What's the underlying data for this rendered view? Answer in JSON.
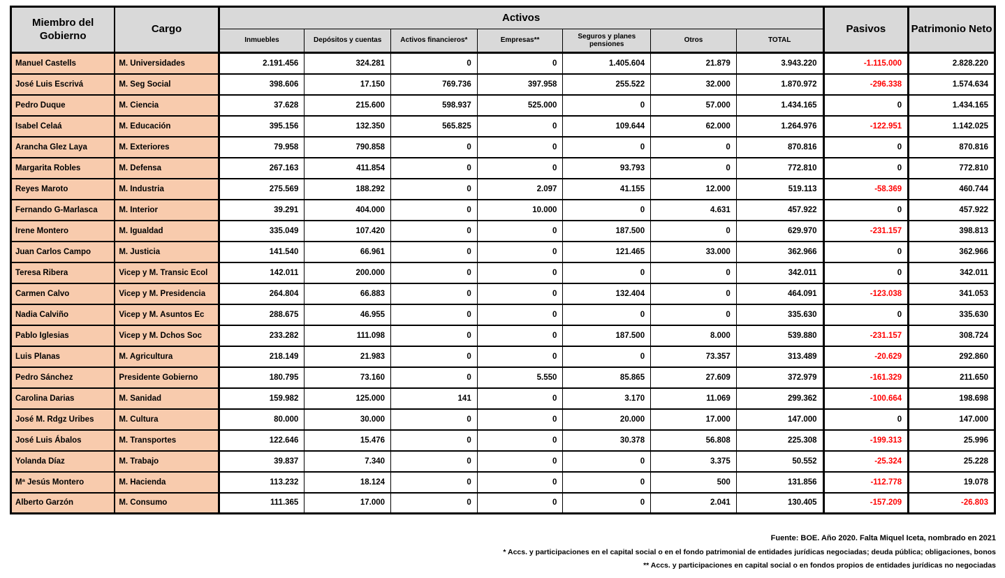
{
  "colors": {
    "header_bg": "#d9d9d9",
    "name_bg": "#f8cbad",
    "negative": "#ff0000"
  },
  "table": {
    "header": {
      "member": "Miembro del Gobierno",
      "cargo": "Cargo",
      "activos_group": "Activos",
      "activos_columns": [
        "Inmuebles",
        "Depósitos y cuentas",
        "Activos financieros*",
        "Empresas**",
        "Seguros y planes pensiones",
        "Otros",
        "TOTAL"
      ],
      "pasivos": "Pasivos",
      "patrimonio": "Patrimonio Neto"
    },
    "rows": [
      {
        "member": "Manuel Castells",
        "cargo": "M. Universidades",
        "activos": [
          "2.191.456",
          "324.281",
          "0",
          "0",
          "1.405.604",
          "21.879",
          "3.943.220"
        ],
        "pasivos": "-1.115.000",
        "patrimonio": "2.828.220"
      },
      {
        "member": "José Luis Escrivá",
        "cargo": "M. Seg Social",
        "activos": [
          "398.606",
          "17.150",
          "769.736",
          "397.958",
          "255.522",
          "32.000",
          "1.870.972"
        ],
        "pasivos": "-296.338",
        "patrimonio": "1.574.634"
      },
      {
        "member": "Pedro Duque",
        "cargo": "M. Ciencia",
        "activos": [
          "37.628",
          "215.600",
          "598.937",
          "525.000",
          "0",
          "57.000",
          "1.434.165"
        ],
        "pasivos": "0",
        "patrimonio": "1.434.165"
      },
      {
        "member": "Isabel Celaá",
        "cargo": "M. Educación",
        "activos": [
          "395.156",
          "132.350",
          "565.825",
          "0",
          "109.644",
          "62.000",
          "1.264.976"
        ],
        "pasivos": "-122.951",
        "patrimonio": "1.142.025"
      },
      {
        "member": "Arancha Glez Laya",
        "cargo": "M. Exteriores",
        "activos": [
          "79.958",
          "790.858",
          "0",
          "0",
          "0",
          "0",
          "870.816"
        ],
        "pasivos": "0",
        "patrimonio": "870.816"
      },
      {
        "member": "Margarita Robles",
        "cargo": "M. Defensa",
        "activos": [
          "267.163",
          "411.854",
          "0",
          "0",
          "93.793",
          "0",
          "772.810"
        ],
        "pasivos": "0",
        "patrimonio": "772.810"
      },
      {
        "member": "Reyes Maroto",
        "cargo": "M. Industria",
        "activos": [
          "275.569",
          "188.292",
          "0",
          "2.097",
          "41.155",
          "12.000",
          "519.113"
        ],
        "pasivos": "-58.369",
        "patrimonio": "460.744"
      },
      {
        "member": "Fernando G-Marlasca",
        "cargo": "M. Interior",
        "activos": [
          "39.291",
          "404.000",
          "0",
          "10.000",
          "0",
          "4.631",
          "457.922"
        ],
        "pasivos": "0",
        "patrimonio": "457.922"
      },
      {
        "member": "Irene Montero",
        "cargo": "M. Igualdad",
        "activos": [
          "335.049",
          "107.420",
          "0",
          "0",
          "187.500",
          "0",
          "629.970"
        ],
        "pasivos": "-231.157",
        "patrimonio": "398.813"
      },
      {
        "member": "Juan Carlos Campo",
        "cargo": "M. Justicia",
        "activos": [
          "141.540",
          "66.961",
          "0",
          "0",
          "121.465",
          "33.000",
          "362.966"
        ],
        "pasivos": "0",
        "patrimonio": "362.966"
      },
      {
        "member": "Teresa Ribera",
        "cargo": "Vicep y M. Transic Ecol",
        "activos": [
          "142.011",
          "200.000",
          "0",
          "0",
          "0",
          "0",
          "342.011"
        ],
        "pasivos": "0",
        "patrimonio": "342.011"
      },
      {
        "member": "Carmen Calvo",
        "cargo": "Vicep y M. Presidencia",
        "activos": [
          "264.804",
          "66.883",
          "0",
          "0",
          "132.404",
          "0",
          "464.091"
        ],
        "pasivos": "-123.038",
        "patrimonio": "341.053"
      },
      {
        "member": "Nadia Calviño",
        "cargo": "Vicep y M. Asuntos Ec",
        "activos": [
          "288.675",
          "46.955",
          "0",
          "0",
          "0",
          "0",
          "335.630"
        ],
        "pasivos": "0",
        "patrimonio": "335.630"
      },
      {
        "member": "Pablo Iglesias",
        "cargo": "Vicep y M. Dchos Soc",
        "activos": [
          "233.282",
          "111.098",
          "0",
          "0",
          "187.500",
          "8.000",
          "539.880"
        ],
        "pasivos": "-231.157",
        "patrimonio": "308.724"
      },
      {
        "member": "Luis Planas",
        "cargo": "M. Agricultura",
        "activos": [
          "218.149",
          "21.983",
          "0",
          "0",
          "0",
          "73.357",
          "313.489"
        ],
        "pasivos": "-20.629",
        "patrimonio": "292.860"
      },
      {
        "member": "Pedro Sánchez",
        "cargo": "Presidente Gobierno",
        "activos": [
          "180.795",
          "73.160",
          "0",
          "5.550",
          "85.865",
          "27.609",
          "372.979"
        ],
        "pasivos": "-161.329",
        "patrimonio": "211.650"
      },
      {
        "member": "Carolina Darias",
        "cargo": "M. Sanidad",
        "activos": [
          "159.982",
          "125.000",
          "141",
          "0",
          "3.170",
          "11.069",
          "299.362"
        ],
        "pasivos": "-100.664",
        "patrimonio": "198.698"
      },
      {
        "member": "José M. Rdgz Uribes",
        "cargo": "M. Cultura",
        "activos": [
          "80.000",
          "30.000",
          "0",
          "0",
          "20.000",
          "17.000",
          "147.000"
        ],
        "pasivos": "0",
        "patrimonio": "147.000"
      },
      {
        "member": "José Luis Ábalos",
        "cargo": "M. Transportes",
        "activos": [
          "122.646",
          "15.476",
          "0",
          "0",
          "30.378",
          "56.808",
          "225.308"
        ],
        "pasivos": "-199.313",
        "patrimonio": "25.996"
      },
      {
        "member": "Yolanda Díaz",
        "cargo": "M. Trabajo",
        "activos": [
          "39.837",
          "7.340",
          "0",
          "0",
          "0",
          "3.375",
          "50.552"
        ],
        "pasivos": "-25.324",
        "patrimonio": "25.228"
      },
      {
        "member": "Mª Jesús Montero",
        "cargo": "M. Hacienda",
        "activos": [
          "113.232",
          "18.124",
          "0",
          "0",
          "0",
          "500",
          "131.856"
        ],
        "pasivos": "-112.778",
        "patrimonio": "19.078"
      },
      {
        "member": "Alberto Garzón",
        "cargo": "M. Consumo",
        "activos": [
          "111.365",
          "17.000",
          "0",
          "0",
          "0",
          "2.041",
          "130.405"
        ],
        "pasivos": "-157.209",
        "patrimonio": "-26.803"
      }
    ]
  },
  "footer": {
    "source": "Fuente: BOE. Año 2020. Falta Miquel Iceta, nombrado en 2021",
    "note1": "* Accs. y participaciones en el capital social o en el fondo patrimonial de entidades jurídicas negociadas; deuda pública; obligaciones, bonos",
    "note2": "** Accs. y participaciones en capital social o en fondos propios de entidades jurídicas no negociadas"
  }
}
